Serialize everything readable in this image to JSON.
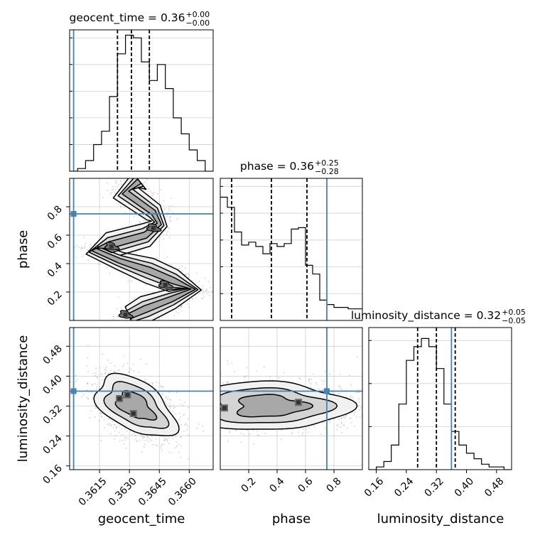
{
  "chart_data": [
    {
      "type": "histogram",
      "panel": "geocent_time marginal",
      "title_base": "geocent_time = 0.36",
      "title_plus": "+0.00",
      "title_minus": "−0.00",
      "x_range": [
        0.36,
        0.3672
      ],
      "bin_edges_start": 0.36,
      "bin_width": 0.0004,
      "counts": [
        0,
        1,
        4,
        10,
        15,
        28,
        44,
        51,
        50,
        41,
        34,
        40,
        31,
        20,
        14,
        8,
        4,
        0
      ],
      "y_max": 53,
      "quantile_lines": [
        0.3624,
        0.3631,
        0.364
      ],
      "injected_value": 0.3602
    },
    {
      "type": "histogram",
      "panel": "phase marginal",
      "title_base": "phase = 0.36",
      "title_plus": "+0.25",
      "title_minus": "−0.28",
      "x_range": [
        0.0,
        1.0
      ],
      "bin_edges_start": 0.0,
      "bin_width": 0.05,
      "counts": [
        85,
        78,
        61,
        52,
        54,
        51,
        46,
        53,
        51,
        53,
        63,
        64,
        38,
        32,
        14,
        11,
        9,
        9,
        8,
        8
      ],
      "y_max": 98,
      "quantile_lines": [
        0.08,
        0.36,
        0.61
      ],
      "injected_value": 0.75
    },
    {
      "type": "histogram",
      "panel": "luminosity_distance marginal",
      "title_base": "luminosity_distance = 0.32",
      "title_plus": "+0.05",
      "title_minus": "−0.05",
      "x_range": [
        0.14,
        0.52
      ],
      "bin_edges_start": 0.14,
      "bin_width": 0.02,
      "counts": [
        0,
        1,
        3,
        9,
        24,
        40,
        45,
        48,
        45,
        37,
        24,
        14,
        9,
        6,
        4,
        2,
        1,
        1,
        0
      ],
      "y_max": 52,
      "quantile_lines": [
        0.27,
        0.32,
        0.37
      ],
      "injected_value": 0.36
    },
    {
      "type": "contour",
      "panel": "phase vs geocent_time",
      "x_range": [
        0.36,
        0.3672
      ],
      "y_range": [
        0.0,
        1.0
      ],
      "injected": [
        0.3602,
        0.75
      ],
      "ridge": [
        [
          0.3635,
          0.98
        ],
        [
          0.3628,
          0.9
        ],
        [
          0.3642,
          0.76
        ],
        [
          0.3645,
          0.68
        ],
        [
          0.3638,
          0.6
        ],
        [
          0.362,
          0.53
        ],
        [
          0.3612,
          0.5
        ],
        [
          0.3625,
          0.42
        ],
        [
          0.364,
          0.35
        ],
        [
          0.3652,
          0.28
        ],
        [
          0.3662,
          0.22
        ],
        [
          0.3651,
          0.15
        ],
        [
          0.3638,
          0.08
        ],
        [
          0.363,
          0.03
        ]
      ],
      "core_points": [
        [
          0.3621,
          0.52
        ],
        [
          0.3628,
          0.04
        ],
        [
          0.3642,
          0.65
        ],
        [
          0.3648,
          0.25
        ]
      ],
      "contour_levels": [
        "outer",
        "middle",
        "inner"
      ]
    },
    {
      "type": "contour",
      "panel": "luminosity_distance vs geocent_time",
      "x_range": [
        0.36,
        0.3672
      ],
      "y_range": [
        0.15,
        0.53
      ],
      "injected": [
        0.3602,
        0.36
      ],
      "center": [
        0.3633,
        0.32
      ],
      "core_points": [
        [
          0.3625,
          0.34
        ],
        [
          0.3629,
          0.35
        ],
        [
          0.3632,
          0.3
        ]
      ],
      "contour_levels": [
        "outer",
        "middle",
        "inner"
      ]
    },
    {
      "type": "contour",
      "panel": "luminosity_distance vs phase",
      "x_range": [
        0.0,
        1.0
      ],
      "y_range": [
        0.15,
        0.53
      ],
      "injected": [
        0.75,
        0.36
      ],
      "center": [
        0.35,
        0.32
      ],
      "core_points": [
        [
          0.03,
          0.315
        ],
        [
          0.55,
          0.33
        ]
      ],
      "contour_levels": [
        "outer",
        "middle",
        "inner"
      ]
    }
  ],
  "axes": {
    "bottom": {
      "geocent_time": {
        "label": "geocent_time",
        "ticks": [
          {
            "value": 0.3615,
            "label": "0.3615"
          },
          {
            "value": 0.363,
            "label": "0.3630"
          },
          {
            "value": 0.3645,
            "label": "0.3645"
          },
          {
            "value": 0.366,
            "label": "0.3660"
          }
        ]
      },
      "phase": {
        "label": "phase",
        "ticks": [
          {
            "value": 0.2,
            "label": "0.2"
          },
          {
            "value": 0.4,
            "label": "0.4"
          },
          {
            "value": 0.6,
            "label": "0.6"
          },
          {
            "value": 0.8,
            "label": "0.8"
          }
        ]
      },
      "luminosity_distance": {
        "label": "luminosity_distance",
        "ticks": [
          {
            "value": 0.16,
            "label": "0.16"
          },
          {
            "value": 0.24,
            "label": "0.24"
          },
          {
            "value": 0.32,
            "label": "0.32"
          },
          {
            "value": 0.4,
            "label": "0.40"
          },
          {
            "value": 0.48,
            "label": "0.48"
          }
        ]
      }
    },
    "left": {
      "phase": {
        "label": "phase",
        "ticks": [
          {
            "value": 0.2,
            "label": "0.2"
          },
          {
            "value": 0.4,
            "label": "0.4"
          },
          {
            "value": 0.6,
            "label": "0.6"
          },
          {
            "value": 0.8,
            "label": "0.8"
          }
        ]
      },
      "luminosity_distance": {
        "label": "luminosity_distance",
        "ticks": [
          {
            "value": 0.16,
            "label": "0.16"
          },
          {
            "value": 0.24,
            "label": "0.24"
          },
          {
            "value": 0.32,
            "label": "0.32"
          },
          {
            "value": 0.4,
            "label": "0.40"
          },
          {
            "value": 0.48,
            "label": "0.48"
          }
        ]
      }
    }
  },
  "colors": {
    "injection": "#4682b4",
    "histogram": "#000000",
    "grid": "#b0b0b0",
    "scatter": "#9a9a9a",
    "fill_levels": [
      "#f1f1f1",
      "#d4d4d4",
      "#a8a8a8",
      "#6e6e6e",
      "#333333"
    ]
  }
}
